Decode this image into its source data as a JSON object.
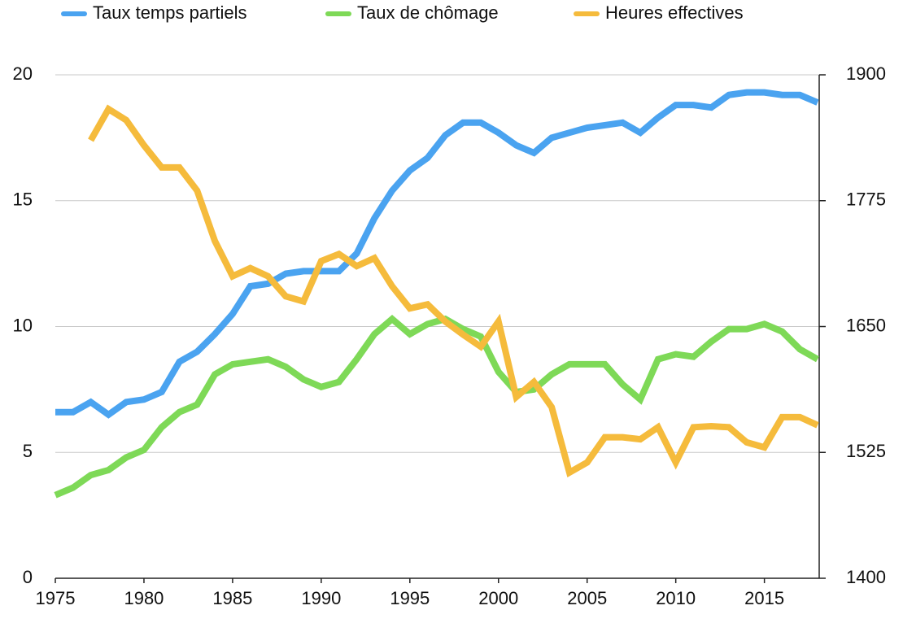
{
  "chart_data": {
    "type": "line",
    "x": [
      1975,
      1976,
      1977,
      1978,
      1979,
      1980,
      1981,
      1982,
      1983,
      1984,
      1985,
      1986,
      1987,
      1988,
      1989,
      1990,
      1991,
      1992,
      1993,
      1994,
      1995,
      1996,
      1997,
      1998,
      1999,
      2000,
      2001,
      2002,
      2003,
      2004,
      2005,
      2006,
      2007,
      2008,
      2009,
      2010,
      2011,
      2012,
      2013,
      2014,
      2015,
      2016,
      2017,
      2018
    ],
    "series": [
      {
        "name": "Taux temps partiels",
        "color": "#4aa3f0",
        "values": [
          6.6,
          6.6,
          7.0,
          6.5,
          7.0,
          7.1,
          7.4,
          8.6,
          9.0,
          9.7,
          10.5,
          11.6,
          11.7,
          12.1,
          12.2,
          12.2,
          12.2,
          12.9,
          14.3,
          15.4,
          16.2,
          16.7,
          17.6,
          18.1,
          18.1,
          17.7,
          17.2,
          16.9,
          17.5,
          17.7,
          17.9,
          18.0,
          18.1,
          17.7,
          18.3,
          18.8,
          18.8,
          18.7,
          19.2,
          19.3,
          19.3,
          19.2,
          19.2,
          18.9
        ]
      },
      {
        "name": "Taux de chômage",
        "color": "#7ed957",
        "values": [
          3.3,
          3.6,
          4.1,
          4.3,
          4.8,
          5.1,
          6.0,
          6.6,
          6.9,
          8.1,
          8.5,
          8.6,
          8.7,
          8.4,
          7.9,
          7.6,
          7.8,
          8.7,
          9.7,
          10.3,
          9.7,
          10.1,
          10.3,
          9.9,
          9.6,
          8.2,
          7.4,
          7.5,
          8.1,
          8.5,
          8.5,
          8.5,
          7.7,
          7.1,
          8.7,
          8.9,
          8.8,
          9.4,
          9.9,
          9.9,
          10.1,
          9.8,
          9.1,
          8.7
        ]
      },
      {
        "name": "Heures effectives",
        "color": "#f5bb3c",
        "axis": "y2",
        "values": [
          null,
          null,
          1835,
          1866,
          1855,
          1830,
          1808,
          1808,
          1785,
          1735,
          1700,
          1708,
          1700,
          1680,
          1675,
          1715,
          1722,
          1710,
          1718,
          1690,
          1668,
          1672,
          1655,
          1642,
          1630,
          1655,
          1580,
          1595,
          1570,
          1505,
          1515,
          1540,
          1540,
          1538,
          1550,
          1515,
          1550,
          1551,
          1550,
          1535,
          1530,
          1560,
          1560,
          1552
        ]
      }
    ],
    "xlim": [
      1975,
      2018
    ],
    "xticks": [
      1975,
      1980,
      1985,
      1990,
      1995,
      2000,
      2005,
      2010,
      2015
    ],
    "ylim": [
      0,
      20
    ],
    "yticks": [
      0,
      5,
      10,
      15,
      20
    ],
    "y2lim": [
      1400,
      1900
    ],
    "y2ticks": [
      1400,
      1525,
      1650,
      1775,
      1900
    ],
    "grid": true,
    "legend": "top"
  }
}
